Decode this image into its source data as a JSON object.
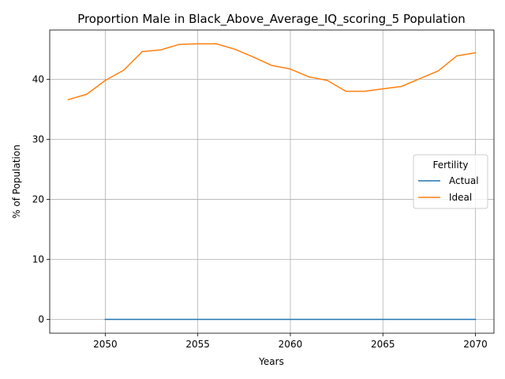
{
  "chart_data": {
    "type": "line",
    "title": "Proportion Male in Black_Above_Average_IQ_scoring_5 Population",
    "xlabel": "Years",
    "ylabel": "% of Population",
    "xlim": [
      2047.0,
      2071.0
    ],
    "ylim": [
      -2.3,
      48.2
    ],
    "xticks": [
      2050,
      2055,
      2060,
      2065,
      2070
    ],
    "yticks": [
      0,
      10,
      20,
      30,
      40
    ],
    "grid": true,
    "legend": {
      "title": "Fertility",
      "placement": "center-right"
    },
    "series": [
      {
        "name": "Actual",
        "color": "#1f77b4",
        "x": [
          2050,
          2051,
          2052,
          2053,
          2054,
          2055,
          2056,
          2057,
          2058,
          2059,
          2060,
          2061,
          2062,
          2063,
          2064,
          2065,
          2066,
          2067,
          2068,
          2069,
          2070
        ],
        "y": [
          0,
          0,
          0,
          0,
          0,
          0,
          0,
          0,
          0,
          0,
          0,
          0,
          0,
          0,
          0,
          0,
          0,
          0,
          0,
          0,
          0
        ]
      },
      {
        "name": "Ideal",
        "color": "#ff7f0e",
        "x": [
          2048,
          2049,
          2050,
          2051,
          2052,
          2053,
          2054,
          2055,
          2056,
          2057,
          2058,
          2059,
          2060,
          2061,
          2062,
          2063,
          2064,
          2065,
          2066,
          2067,
          2068,
          2069,
          2070
        ],
        "y": [
          36.6,
          37.5,
          39.8,
          41.5,
          44.6,
          44.9,
          45.8,
          45.9,
          45.9,
          45.0,
          43.7,
          42.3,
          41.7,
          40.4,
          39.8,
          38.0,
          38.0,
          38.4,
          38.8,
          40.1,
          41.4,
          43.9,
          44.4
        ]
      }
    ]
  }
}
